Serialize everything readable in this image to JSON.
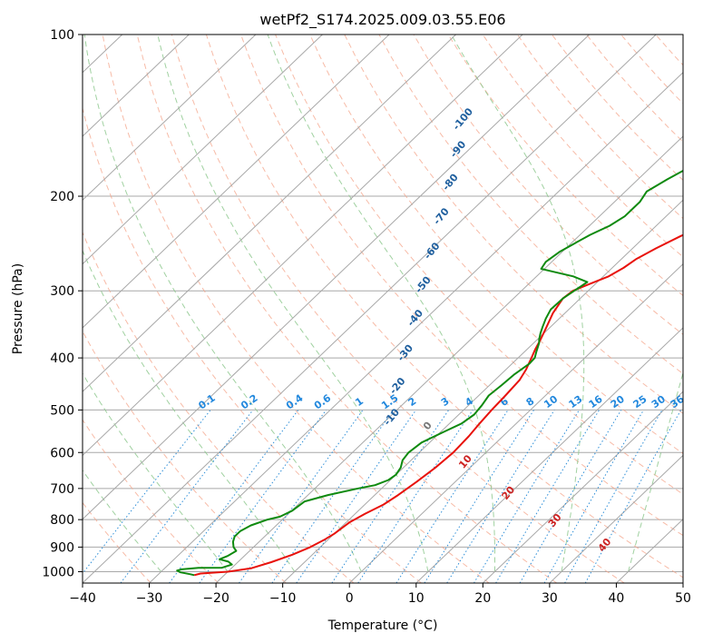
{
  "chart_data": {
    "type": "line",
    "title": "wetPf2_S174.2025.009.03.55.E06",
    "xlabel": "Temperature (°C)",
    "ylabel": "Pressure (hPa)",
    "xlim": [
      -40,
      50
    ],
    "ylim": [
      1050,
      100
    ],
    "y_scale": "log",
    "x_ticks": [
      "−40",
      "−30",
      "−20",
      "−10",
      "0",
      "10",
      "20",
      "30",
      "40",
      "50"
    ],
    "x_tick_values": [
      -40,
      -30,
      -20,
      -10,
      0,
      10,
      20,
      30,
      40,
      50
    ],
    "y_ticks": [
      "100",
      "200",
      "300",
      "400",
      "500",
      "600",
      "700",
      "800",
      "900",
      "1000"
    ],
    "y_tick_values": [
      100,
      200,
      300,
      400,
      500,
      600,
      700,
      800,
      900,
      1000
    ],
    "grid": true,
    "colors": {
      "temperature": "#e8120c",
      "dewpoint": "#0f8a0f",
      "isotherm": "#a8a8a8",
      "dry_adiabat": "#f4a48a",
      "moist_adiabat": "#8fc98f",
      "mixing_ratio": "#2f8fd8",
      "mixing_label": "#2288dd",
      "moist_label": "#1f5f9e",
      "dry_label_warm": "#cc2222",
      "dry_label_zero": "#777777",
      "cold_adiabat": "#c9b28a"
    },
    "series": [
      {
        "key": "temperature",
        "points": [
          [
            -24.5,
            1015
          ],
          [
            -23.8,
            1008
          ],
          [
            -20,
            1000
          ],
          [
            -17,
            985
          ],
          [
            -15,
            960
          ],
          [
            -13,
            930
          ],
          [
            -11.5,
            900
          ],
          [
            -10.5,
            870
          ],
          [
            -10,
            850
          ],
          [
            -9.5,
            810
          ],
          [
            -8.5,
            780
          ],
          [
            -7.2,
            750
          ],
          [
            -6.5,
            720
          ],
          [
            -5.8,
            680
          ],
          [
            -5.2,
            640
          ],
          [
            -4.9,
            600
          ],
          [
            -5.1,
            560
          ],
          [
            -5.5,
            530
          ],
          [
            -5.8,
            500
          ],
          [
            -6,
            470
          ],
          [
            -6.3,
            440
          ],
          [
            -7,
            420
          ],
          [
            -8,
            400
          ],
          [
            -8.8,
            385
          ],
          [
            -9.5,
            370
          ],
          [
            -10.6,
            350
          ],
          [
            -11.8,
            330
          ],
          [
            -12.6,
            310
          ],
          [
            -12.3,
            300
          ],
          [
            -11,
            292
          ],
          [
            -9.2,
            282
          ],
          [
            -8.3,
            272
          ],
          [
            -7.8,
            262
          ],
          [
            -6.5,
            250
          ],
          [
            -4.7,
            237
          ],
          [
            -2,
            224
          ],
          [
            0.5,
            213
          ],
          [
            3.5,
            201
          ],
          [
            8.3,
            180
          ],
          [
            12.5,
            164
          ],
          [
            16,
            150
          ],
          [
            18.8,
            139
          ],
          [
            21,
            130
          ],
          [
            22.4,
            121
          ],
          [
            23,
            114
          ],
          [
            23.4,
            107
          ],
          [
            23.7,
            100
          ]
        ]
      },
      {
        "key": "dewpoint",
        "points": [
          [
            -24.5,
            1015
          ],
          [
            -25.2,
            1011
          ],
          [
            -27,
            1003
          ],
          [
            -27.8,
            995
          ],
          [
            -27.3,
            990
          ],
          [
            -25,
            984
          ],
          [
            -21.5,
            983
          ],
          [
            -20.5,
            970
          ],
          [
            -21.5,
            958
          ],
          [
            -23.2,
            948
          ],
          [
            -22.5,
            935
          ],
          [
            -22,
            915
          ],
          [
            -23,
            900
          ],
          [
            -23.9,
            880
          ],
          [
            -24.5,
            860
          ],
          [
            -24.5,
            840
          ],
          [
            -23.8,
            820
          ],
          [
            -22.2,
            800
          ],
          [
            -20.8,
            790
          ],
          [
            -19.9,
            770
          ],
          [
            -19.5,
            740
          ],
          [
            -17,
            720
          ],
          [
            -13.5,
            700
          ],
          [
            -11.5,
            690
          ],
          [
            -10.3,
            675
          ],
          [
            -10,
            660
          ],
          [
            -10.4,
            640
          ],
          [
            -11.3,
            620
          ],
          [
            -11.6,
            600
          ],
          [
            -11.2,
            575
          ],
          [
            -9.6,
            550
          ],
          [
            -8.2,
            530
          ],
          [
            -7.7,
            510
          ],
          [
            -8,
            490
          ],
          [
            -8.5,
            470
          ],
          [
            -8.2,
            450
          ],
          [
            -8,
            430
          ],
          [
            -7.4,
            410
          ],
          [
            -7.5,
            400
          ],
          [
            -8.2,
            390
          ],
          [
            -9.2,
            375
          ],
          [
            -9.7,
            370
          ],
          [
            -10.5,
            360
          ],
          [
            -11.2,
            350
          ],
          [
            -12,
            338
          ],
          [
            -12.7,
            325
          ],
          [
            -12.6,
            310
          ],
          [
            -12,
            298
          ],
          [
            -11.5,
            289
          ],
          [
            -14.5,
            282
          ],
          [
            -18.5,
            276
          ],
          [
            -20.5,
            273
          ],
          [
            -20.9,
            265
          ],
          [
            -20.4,
            254
          ],
          [
            -19.5,
            245
          ],
          [
            -18.5,
            236
          ],
          [
            -17,
            227
          ],
          [
            -16.2,
            218
          ],
          [
            -16.2,
            205
          ],
          [
            -16.8,
            196
          ],
          [
            -15.6,
            186
          ],
          [
            -13.8,
            174
          ],
          [
            -12.4,
            164
          ],
          [
            -11,
            155
          ],
          [
            -9.6,
            147
          ],
          [
            -7.3,
            138
          ],
          [
            -4.7,
            129
          ],
          [
            -1.7,
            121
          ],
          [
            0.8,
            114
          ],
          [
            3.3,
            107
          ],
          [
            5,
            101
          ],
          [
            5.4,
            100
          ]
        ]
      }
    ],
    "dry_adiabat_label_values": [
      -100,
      -90,
      -80,
      -70,
      -60,
      -50,
      -40,
      -30,
      -20,
      -10
    ],
    "moist_adiabat_labels": [
      "-100",
      "-90",
      "-80",
      "-70",
      "-60",
      "-50",
      "-40",
      "-30",
      "-20",
      "-10"
    ],
    "moist_adiabat_pressure": [
      145,
      165,
      190,
      220,
      255,
      295,
      340,
      395,
      455,
      520
    ],
    "warm_labels": [
      "0",
      "10",
      "20",
      "30",
      "40"
    ],
    "warm_label_values": [
      0,
      10,
      20,
      30,
      40
    ],
    "mixing_ratio_labels": [
      "0.1",
      "0.2",
      "0.4",
      "0.6",
      "1",
      "1.5",
      "2",
      "3",
      "4",
      "6",
      "8",
      "10",
      "13",
      "16",
      "20",
      "25",
      "30",
      "36"
    ],
    "mixing_ratio_values": [
      0.1,
      0.2,
      0.4,
      0.6,
      1,
      1.5,
      2,
      3,
      4,
      6,
      8,
      10,
      13,
      16,
      20,
      25,
      30,
      36
    ]
  }
}
